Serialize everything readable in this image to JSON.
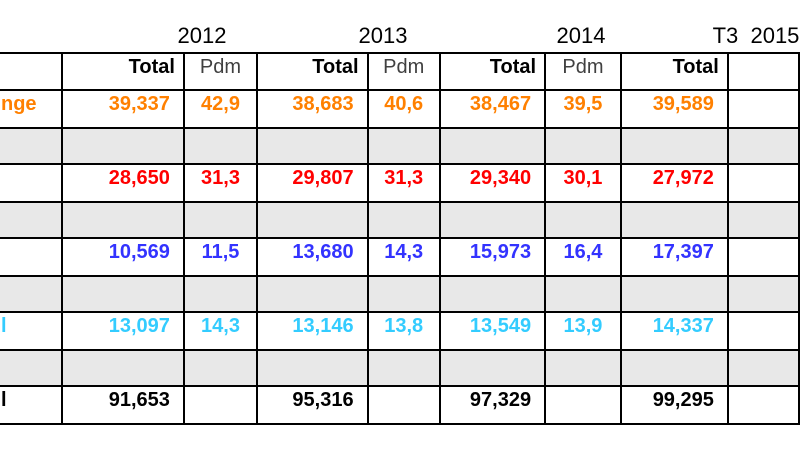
{
  "colors": {
    "page_bg": "#FFFFFF",
    "border": "#000000",
    "spacer_bg": "#E8E8E8",
    "pdm_header_text": "#404040",
    "orange_series": "#FF8000",
    "red_series": "#FF0000",
    "blue_series": "#3333FF",
    "cyan_series": "#33CCFF",
    "total_series": "#000000"
  },
  "year_header": {
    "labels": [
      "2012",
      "2013",
      "2014",
      "T3  2015"
    ]
  },
  "table": {
    "columns": [
      {
        "type": "label",
        "w": 65
      },
      {
        "type": "total",
        "w": 128
      },
      {
        "type": "pdm",
        "w": 77
      },
      {
        "type": "total",
        "w": 115
      },
      {
        "type": "pdm",
        "w": 76
      },
      {
        "type": "total",
        "w": 109
      },
      {
        "type": "pdm",
        "w": 80
      },
      {
        "type": "total",
        "w": 111
      },
      {
        "type": "pdm",
        "w": 80
      }
    ],
    "header_cells": [
      "",
      "Total",
      "Pdm",
      "Total",
      "Pdm",
      "Total",
      "Pdm",
      "Total",
      ""
    ],
    "rows": [
      {
        "kind": "data",
        "name": "row-orange",
        "color": "#FF8000",
        "label_fragment": "nge",
        "cells": [
          "39,337",
          "42,9",
          "38,683",
          "40,6",
          "38,467",
          "39,5",
          "39,589",
          ""
        ]
      },
      {
        "kind": "spacer"
      },
      {
        "kind": "data",
        "name": "row-red",
        "color": "#FF0000",
        "label_fragment": "",
        "cells": [
          "28,650",
          "31,3",
          "29,807",
          "31,3",
          "29,340",
          "30,1",
          "27,972",
          ""
        ]
      },
      {
        "kind": "spacer"
      },
      {
        "kind": "data",
        "name": "row-blue",
        "color": "#3333FF",
        "label_fragment": "",
        "cells": [
          "10,569",
          "11,5",
          "13,680",
          "14,3",
          "15,973",
          "16,4",
          "17,397",
          ""
        ]
      },
      {
        "kind": "spacer"
      },
      {
        "kind": "data",
        "name": "row-cyan",
        "color": "#33CCFF",
        "label_fragment": "l",
        "cells": [
          "13,097",
          "14,3",
          "13,146",
          "13,8",
          "13,549",
          "13,9",
          "14,337",
          ""
        ]
      },
      {
        "kind": "spacer"
      },
      {
        "kind": "data",
        "name": "row-total",
        "color": "#000000",
        "label_fragment": "l",
        "cells": [
          "91,653",
          "",
          "95,316",
          "",
          "97,329",
          "",
          "99,295",
          ""
        ]
      }
    ]
  },
  "chart_data": {
    "type": "table",
    "title": "",
    "column_groups": [
      "2012",
      "2013",
      "2014",
      "T3 2015"
    ],
    "columns": [
      "2012 Total",
      "2012 Pdm",
      "2013 Total",
      "2013 Pdm",
      "2014 Total",
      "2014 Pdm",
      "T3 2015 Total"
    ],
    "rows": [
      {
        "label_visible": "nge",
        "color": "#FF8000",
        "values": [
          "39,337",
          "42,9",
          "38,683",
          "40,6",
          "38,467",
          "39,5",
          "39,589"
        ]
      },
      {
        "label_visible": "",
        "color": "#FF0000",
        "values": [
          "28,650",
          "31,3",
          "29,807",
          "31,3",
          "29,340",
          "30,1",
          "27,972"
        ]
      },
      {
        "label_visible": "",
        "color": "#3333FF",
        "values": [
          "10,569",
          "11,5",
          "13,680",
          "14,3",
          "15,973",
          "16,4",
          "17,397"
        ]
      },
      {
        "label_visible": "l",
        "color": "#33CCFF",
        "values": [
          "13,097",
          "14,3",
          "13,146",
          "13,8",
          "13,549",
          "13,9",
          "14,337"
        ]
      },
      {
        "label_visible": "l",
        "color": "#000000",
        "values": [
          "91,653",
          "",
          "95,316",
          "",
          "97,329",
          "",
          "99,295"
        ]
      }
    ],
    "layout_hints": {
      "grid": true,
      "spacer_rows_between_data_rows": true,
      "left_label_column_cut_off": true,
      "last_pdm_column_cut_off": true,
      "total_columns_right_aligned": true,
      "pdm_columns_centered": true
    }
  }
}
